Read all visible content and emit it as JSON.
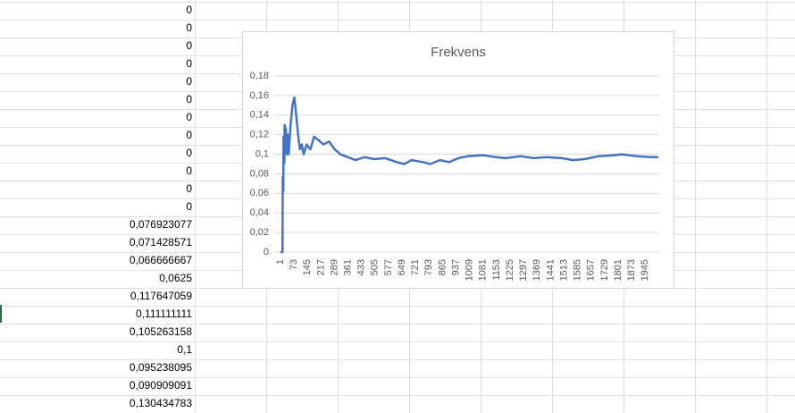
{
  "sheet": {
    "cells": [
      "0",
      "0",
      "0",
      "0",
      "0",
      "0",
      "0",
      "0",
      "0",
      "0",
      "0",
      "0",
      "0,076923077",
      "0,071428571",
      "0,066666667",
      "0,0625",
      "0,117647059",
      "0,111111111",
      "0,105263158",
      "0,1",
      "0,095238095",
      "0,090909091",
      "0,130434783"
    ]
  },
  "chart_data": {
    "type": "line",
    "title": "Frekvens",
    "x": [
      1,
      12,
      13,
      16,
      17,
      22,
      23,
      30,
      35,
      40,
      45,
      55,
      65,
      75,
      85,
      95,
      105,
      115,
      125,
      140,
      160,
      180,
      200,
      230,
      260,
      290,
      320,
      360,
      400,
      450,
      500,
      560,
      620,
      660,
      700,
      760,
      800,
      850,
      900,
      950,
      1000,
      1080,
      1150,
      1200,
      1280,
      1350,
      1420,
      1500,
      1560,
      1620,
      1700,
      1780,
      1820,
      1900,
      1980,
      2015
    ],
    "values": [
      0,
      0,
      0.077,
      0.0625,
      0.118,
      0.091,
      0.13,
      0.125,
      0.1,
      0.12,
      0.1,
      0.13,
      0.15,
      0.158,
      0.14,
      0.12,
      0.105,
      0.11,
      0.1,
      0.11,
      0.105,
      0.118,
      0.115,
      0.11,
      0.113,
      0.105,
      0.1,
      0.097,
      0.094,
      0.097,
      0.095,
      0.096,
      0.092,
      0.09,
      0.094,
      0.092,
      0.09,
      0.094,
      0.092,
      0.096,
      0.098,
      0.099,
      0.097,
      0.096,
      0.098,
      0.096,
      0.097,
      0.096,
      0.094,
      0.095,
      0.098,
      0.099,
      0.1,
      0.098,
      0.097,
      0.097
    ],
    "color": "#4472c4",
    "xlim": [
      1,
      2020
    ],
    "xticks": [
      1,
      73,
      145,
      217,
      289,
      361,
      433,
      505,
      577,
      649,
      721,
      793,
      865,
      937,
      1009,
      1081,
      1153,
      1225,
      1297,
      1369,
      1441,
      1513,
      1585,
      1657,
      1729,
      1801,
      1873,
      1945
    ],
    "ylim": [
      0,
      0.18
    ],
    "yticks": [
      0,
      {
        "value": 0.02,
        "label": "0,02"
      },
      {
        "value": 0.04,
        "label": "0,04"
      },
      {
        "value": 0.06,
        "label": "0,06"
      },
      {
        "value": 0.08,
        "label": "0,08"
      },
      {
        "value": 0.1,
        "label": "0,1"
      },
      {
        "value": 0.12,
        "label": "0,12"
      },
      {
        "value": 0.14,
        "label": "0,14"
      },
      {
        "value": 0.16,
        "label": "0,16"
      },
      {
        "value": 0.18,
        "label": "0,18"
      }
    ],
    "grid": true
  }
}
